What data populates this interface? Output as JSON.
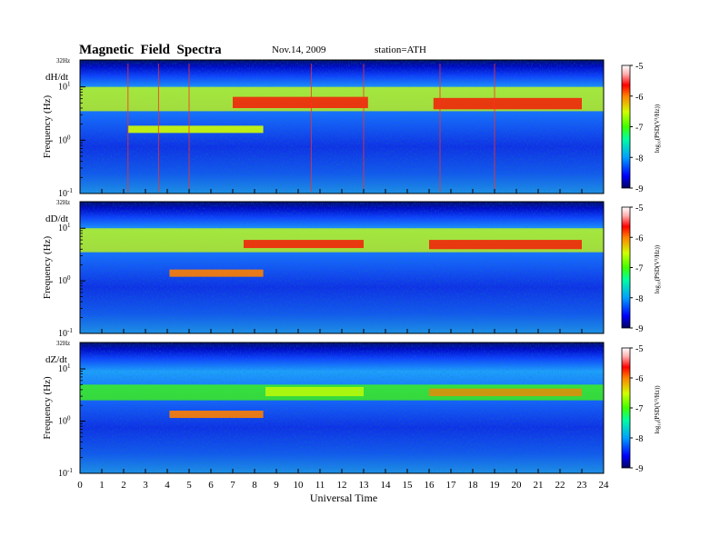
{
  "header": {
    "title": "Magnetic  Field  Spectra",
    "date": "Nov.14, 2009",
    "station": "station=ATH"
  },
  "chart_data": {
    "type": "heatmap",
    "title": "Magnetic  Field  Spectra",
    "x_label": "Universal Time",
    "x_range": [
      0,
      24
    ],
    "x_ticks": [
      "0",
      "1",
      "2",
      "3",
      "4",
      "5",
      "6",
      "7",
      "8",
      "9",
      "10",
      "11",
      "12",
      "13",
      "14",
      "15",
      "16",
      "17",
      "18",
      "19",
      "20",
      "21",
      "22",
      "23",
      "24"
    ],
    "y_label": "Frequency  (Hz)",
    "y_scale": "log",
    "y_range": [
      0.1,
      32
    ],
    "y_top_label": "32Hz",
    "y_tick_labels": [
      {
        "base": "10",
        "exp": "1"
      },
      {
        "base": "10",
        "exp": "0"
      },
      {
        "base": "10",
        "exp": "-1"
      }
    ],
    "colorbar": {
      "label": "log₁₀(PSD(V²/Hz))",
      "range": [
        -9,
        -5
      ],
      "ticks": [
        "-5",
        "-6",
        "-7",
        "-8",
        "-9"
      ],
      "colors": [
        "#000060",
        "#0000ff",
        "#00a0ff",
        "#00ffa0",
        "#40ff00",
        "#d0ff00",
        "#ff8000",
        "#ff0000",
        "#ffb0b0",
        "#ffffff"
      ]
    },
    "panels": [
      {
        "component": "dH/dt",
        "features": [
          {
            "kind": "band",
            "t": [
              0,
              24
            ],
            "f": [
              3.5,
              10
            ],
            "level": -6.8
          },
          {
            "kind": "band",
            "t": [
              7,
              13.2
            ],
            "f": [
              4.0,
              6.5
            ],
            "level": -5.8
          },
          {
            "kind": "band",
            "t": [
              16.2,
              23
            ],
            "f": [
              3.8,
              6.2
            ],
            "level": -5.8
          },
          {
            "kind": "line",
            "t": [
              2.2,
              8.4
            ],
            "f": 1.6,
            "level": -7.0
          },
          {
            "kind": "spikes",
            "t": [
              2.2,
              3.6,
              5.0,
              10.6,
              13.0,
              16.5,
              19.0
            ]
          }
        ]
      },
      {
        "component": "dD/dt",
        "features": [
          {
            "kind": "band",
            "t": [
              0,
              24
            ],
            "f": [
              3.5,
              10
            ],
            "level": -6.9
          },
          {
            "kind": "band",
            "t": [
              7.5,
              13.0
            ],
            "f": [
              4.2,
              6.0
            ],
            "level": -5.9
          },
          {
            "kind": "band",
            "t": [
              16.0,
              23.0
            ],
            "f": [
              4.0,
              6.0
            ],
            "level": -6.0
          },
          {
            "kind": "line",
            "t": [
              4.1,
              8.4
            ],
            "f": 1.4,
            "level": -6.5
          }
        ]
      },
      {
        "component": "dZ/dt",
        "features": [
          {
            "kind": "band",
            "t": [
              0,
              24
            ],
            "f": [
              2.5,
              5.0
            ],
            "level": -7.3
          },
          {
            "kind": "band",
            "t": [
              8.5,
              13.0
            ],
            "f": [
              3.0,
              4.5
            ],
            "level": -6.6
          },
          {
            "kind": "band",
            "t": [
              16.0,
              23.0
            ],
            "f": [
              3.0,
              4.2
            ],
            "level": -6.4
          },
          {
            "kind": "line",
            "t": [
              4.1,
              8.4
            ],
            "f": 1.35,
            "level": -6.3
          }
        ]
      }
    ]
  }
}
